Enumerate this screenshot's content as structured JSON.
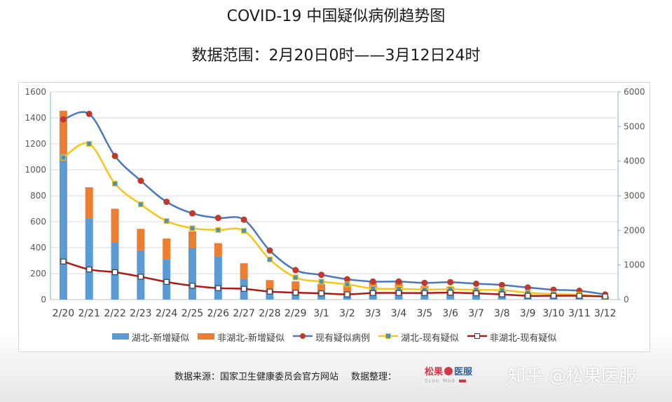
{
  "title": "COVID-19 中国疑似病例趋势图",
  "subtitle": "数据范围：2月20日0时——3月12日24时",
  "footer": {
    "source": "数据来源：国家卫生健康委员会官方网站",
    "organizer_label": "数据整理：",
    "logo_text_a": "松果",
    "logo_text_b": "医服",
    "logo_sub_a": "Scon",
    "logo_sub_b": "Med"
  },
  "watermark": "知乎 @松果医服",
  "colors": {
    "hubei_new": "#5b9bd5",
    "non_hubei_new": "#ed7d31",
    "existing_total": "#4a78b8",
    "hubei_existing": "#f5c518",
    "non_hubei_existing": "#b01818"
  },
  "chart_data": {
    "type": "bar",
    "categories": [
      "2/20",
      "2/21",
      "2/22",
      "2/23",
      "2/24",
      "2/25",
      "2/26",
      "2/27",
      "2/28",
      "2/29",
      "3/1",
      "3/2",
      "3/3",
      "3/4",
      "3/5",
      "3/6",
      "3/7",
      "3/8",
      "3/9",
      "3/10",
      "3/11",
      "3/12"
    ],
    "y_left": {
      "min": 0,
      "max": 1600,
      "step": 200,
      "ticks": [
        "0",
        "200",
        "400",
        "600",
        "800",
        "1000",
        "1200",
        "1400",
        "1600"
      ]
    },
    "y_right": {
      "min": 0,
      "max": 6000,
      "step": 1000,
      "ticks": [
        "0",
        "1000",
        "2000",
        "3000",
        "4000",
        "5000",
        "6000"
      ]
    },
    "stacked_bars": [
      {
        "name": "湖北-新增疑似",
        "axis": "left",
        "values": [
          1120,
          625,
          440,
          380,
          310,
          400,
          330,
          160,
          75,
          70,
          60,
          55,
          70,
          80,
          70,
          65,
          50,
          40,
          25,
          25,
          20,
          15
        ]
      },
      {
        "name": "非湖北-新增疑似",
        "axis": "left",
        "values": [
          335,
          240,
          260,
          165,
          160,
          125,
          105,
          120,
          75,
          70,
          60,
          55,
          70,
          60,
          35,
          35,
          30,
          25,
          20,
          15,
          15,
          10
        ]
      }
    ],
    "lines": [
      {
        "name": "现有疑似病例",
        "axis": "right",
        "values": [
          5206,
          5365,
          4148,
          3434,
          2824,
          2491,
          2358,
          2308,
          1418,
          851,
          715,
          587,
          520,
          522,
          482,
          502,
          458,
          421,
          349,
          285,
          253,
          147
        ]
      },
      {
        "name": "湖北-现有疑似",
        "axis": "right",
        "values": [
          4100,
          4500,
          3350,
          2750,
          2270,
          2060,
          2010,
          1990,
          1160,
          640,
          520,
          440,
          320,
          310,
          290,
          300,
          280,
          270,
          200,
          160,
          140,
          80
        ]
      },
      {
        "name": "非湖北-现有疑似",
        "axis": "right",
        "values": [
          1100,
          870,
          790,
          660,
          510,
          400,
          330,
          310,
          230,
          200,
          180,
          150,
          190,
          190,
          190,
          200,
          180,
          150,
          110,
          110,
          110,
          90
        ]
      }
    ]
  }
}
